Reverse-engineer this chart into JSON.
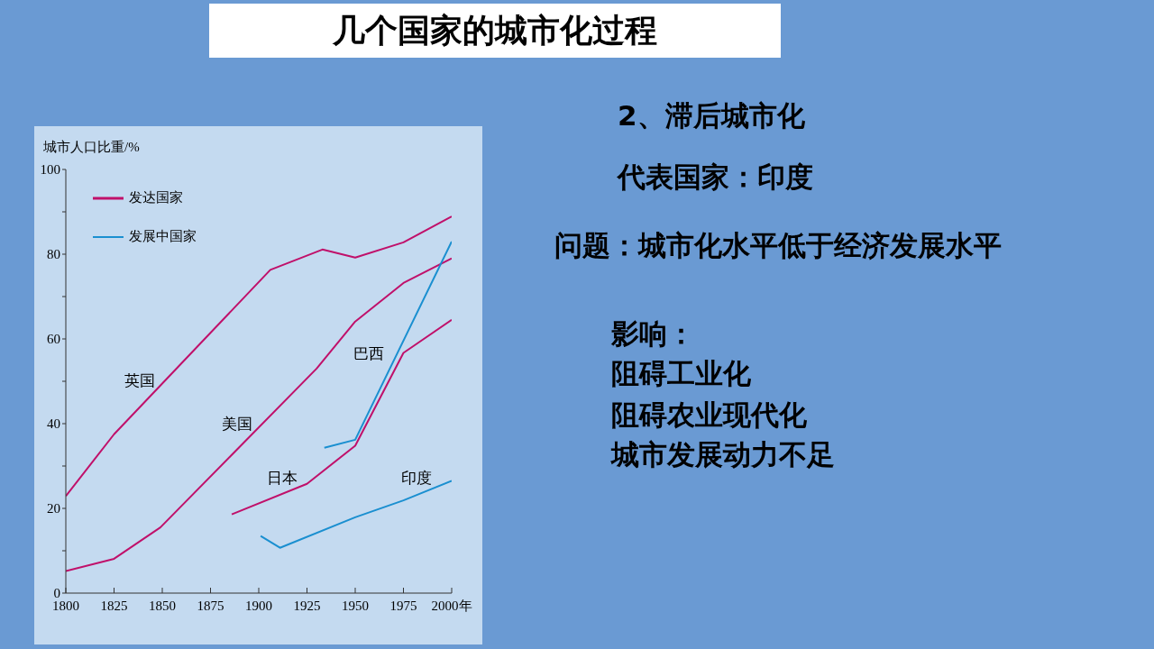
{
  "chart_data": {
    "type": "line",
    "title": "几个国家的城市化过程",
    "ylabel": "城市人口比重/%",
    "xlim": [
      1800,
      2000
    ],
    "xticks": [
      1800,
      1825,
      1850,
      1875,
      1900,
      1925,
      1950,
      1975,
      {
        "value": 2000,
        "label": "2000年"
      }
    ],
    "ylim": [
      0,
      100
    ],
    "yticks": [
      0,
      {
        "value": 10,
        "label": null
      },
      20,
      {
        "value": 30,
        "label": null
      },
      40,
      {
        "value": 50,
        "label": null
      },
      60,
      {
        "value": 70,
        "label": null
      },
      80,
      {
        "value": 90,
        "label": null
      },
      100
    ],
    "grid": false,
    "legend": "top left",
    "marker": "none",
    "line_style": "solid",
    "series": [
      {
        "name": "发达国家",
        "color": "#c0106a",
        "x": [
          1800,
          1825,
          1906,
          1933,
          1950,
          1975,
          2000
        ],
        "values": [
          22.9,
          37.5,
          76.3,
          81.1,
          79.2,
          82.8,
          88.9
        ]
      },
      {
        "color": "#c0106a",
        "x": [
          1800,
          1825,
          1849,
          1930,
          1950,
          1975,
          2000
        ],
        "values": [
          5.2,
          8.1,
          15.5,
          53,
          64.1,
          73.2,
          79
        ]
      },
      {
        "color": "#c0106a",
        "x": [
          1886,
          1925,
          1950,
          1975,
          2000
        ],
        "values": [
          18.6,
          25.8,
          34.8,
          56.7,
          64.5
        ]
      },
      {
        "name": "发展中国家",
        "color": "#1a8fd0",
        "x": [
          1934,
          1950,
          2000
        ],
        "values": [
          34.3,
          36.2,
          83
        ]
      },
      {
        "color": "#1a8fd0",
        "x": [
          1901,
          1911,
          1950,
          1975,
          2000
        ],
        "values": [
          13.5,
          10.7,
          17.9,
          21.9,
          26.5
        ]
      }
    ],
    "annotations": [
      "英国",
      "美国",
      "日本",
      "巴西",
      "印度",
      "2、滞后城市化",
      "代表国家：印度",
      "问题：城市化水平低于经济发展水平",
      "影响：",
      "阻碍工业化",
      "阻碍农业现代化",
      "城市发展动力不足"
    ]
  }
}
